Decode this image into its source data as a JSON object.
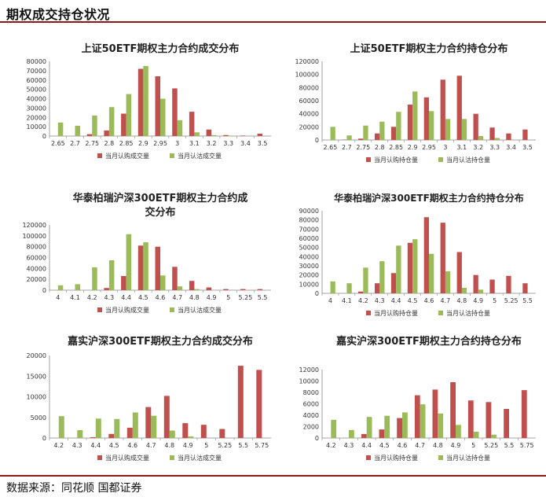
{
  "page": {
    "title": "期权成交持仓状况",
    "source": "数据来源：同花顺 国都证券"
  },
  "colors": {
    "call": "#c0504d",
    "put": "#9bbb59",
    "rule": "#8b1a1a"
  },
  "chart_data": [
    {
      "type": "bar",
      "title": [
        "上证50ETF期权主力合约成交分布"
      ],
      "categories": [
        "2.65",
        "2.7",
        "2.75",
        "2.8",
        "2.85",
        "2.9",
        "2.95",
        "3",
        "3.1",
        "3.2",
        "3.3",
        "3.4",
        "3.5"
      ],
      "yticks": [
        0,
        10000,
        20000,
        30000,
        40000,
        50000,
        60000,
        70000,
        80000
      ],
      "ylim": [
        0,
        80000
      ],
      "series": [
        {
          "name": "当月认购成交量",
          "color": "#c0504d",
          "values": [
            0,
            0,
            2000,
            6000,
            24000,
            72000,
            64000,
            51000,
            26000,
            7000,
            1000,
            500,
            2500
          ]
        },
        {
          "name": "当月认沽成交量",
          "color": "#9bbb59",
          "values": [
            14500,
            11000,
            22000,
            31000,
            45000,
            75000,
            40000,
            17000,
            4000,
            1000,
            500,
            0,
            0
          ]
        }
      ]
    },
    {
      "type": "bar",
      "title": [
        "上证50ETF期权主力合约持仓分布"
      ],
      "categories": [
        "2.65",
        "2.7",
        "2.75",
        "2.8",
        "2.85",
        "2.9",
        "2.95",
        "3",
        "3.1",
        "3.2",
        "3.3",
        "3.4",
        "3.5"
      ],
      "yticks": [
        0,
        20000,
        40000,
        60000,
        80000,
        100000,
        120000
      ],
      "ylim": [
        0,
        120000
      ],
      "series": [
        {
          "name": "当月认购持仓量",
          "color": "#c0504d",
          "values": [
            0,
            500,
            2000,
            10000,
            20000,
            54000,
            65000,
            92000,
            98000,
            40000,
            19000,
            10000,
            16000
          ]
        },
        {
          "name": "当月认沽持仓量",
          "color": "#9bbb59",
          "values": [
            20000,
            7000,
            22000,
            28000,
            43000,
            74000,
            44000,
            32000,
            32000,
            6000,
            3000,
            0,
            0
          ]
        }
      ]
    },
    {
      "type": "bar",
      "title": [
        "华泰柏瑞沪深300ETF期权主力合约成",
        "交分布"
      ],
      "categories": [
        "4",
        "4.1",
        "4.2",
        "4.3",
        "4.4",
        "4.5",
        "4.6",
        "4.7",
        "4.8",
        "4.9",
        "5",
        "5.25",
        "5.5"
      ],
      "yticks": [
        0,
        20000,
        40000,
        60000,
        80000,
        100000,
        120000
      ],
      "ylim": [
        0,
        120000
      ],
      "series": [
        {
          "name": "当月认购成交量",
          "color": "#c0504d",
          "values": [
            0,
            0,
            0,
            4000,
            26000,
            82000,
            80000,
            43000,
            17000,
            5000,
            2000,
            2000,
            2000
          ]
        },
        {
          "name": "当月认沽成交量",
          "color": "#9bbb59",
          "values": [
            9000,
            11000,
            42000,
            55000,
            103000,
            88000,
            27000,
            7000,
            2000,
            0,
            0,
            0,
            0
          ]
        }
      ]
    },
    {
      "type": "bar",
      "title": [
        "华泰柏瑞沪深300ETF期权主力合约持仓分布"
      ],
      "categories": [
        "4",
        "4.1",
        "4.2",
        "4.3",
        "4.4",
        "4.5",
        "4.6",
        "4.7",
        "4.8",
        "4.9",
        "5",
        "5.25",
        "5.5"
      ],
      "yticks": [
        0,
        10000,
        20000,
        30000,
        40000,
        50000,
        60000,
        70000,
        80000,
        90000
      ],
      "ylim": [
        0,
        90000
      ],
      "series": [
        {
          "name": "当月认购持仓量",
          "color": "#c0504d",
          "values": [
            0,
            0,
            2000,
            11000,
            22000,
            55000,
            83000,
            77000,
            45000,
            20000,
            15000,
            19000,
            11000
          ]
        },
        {
          "name": "当月认沽持仓量",
          "color": "#9bbb59",
          "values": [
            13000,
            11000,
            28000,
            35000,
            52000,
            59000,
            43000,
            24000,
            6000,
            4000,
            0,
            0,
            0
          ]
        }
      ]
    },
    {
      "type": "bar",
      "title": [
        "嘉实沪深300ETF期权主力合约成交分布"
      ],
      "categories": [
        "4.2",
        "4.3",
        "4.4",
        "4.5",
        "4.6",
        "4.7",
        "4.8",
        "4.9",
        "5",
        "5.25",
        "5.5",
        "5.75"
      ],
      "yticks": [
        0,
        5000,
        10000,
        15000,
        20000
      ],
      "ylim": [
        0,
        20000
      ],
      "series": [
        {
          "name": "当月认购成交量",
          "color": "#c0504d",
          "values": [
            0,
            0,
            200,
            1000,
            2500,
            7500,
            10200,
            3600,
            3200,
            2200,
            17500,
            16500
          ]
        },
        {
          "name": "当月认沽成交量",
          "color": "#9bbb59",
          "values": [
            5300,
            1900,
            4700,
            4600,
            6200,
            5400,
            1800,
            400,
            0,
            0,
            0,
            0
          ]
        }
      ]
    },
    {
      "type": "bar",
      "title": [
        "嘉实沪深300ETF期权主力合约持仓分布"
      ],
      "categories": [
        "4.2",
        "4.3",
        "4.4",
        "4.5",
        "4.6",
        "4.7",
        "4.8",
        "4.9",
        "5",
        "5.25",
        "5.5",
        "5.75"
      ],
      "yticks": [
        0,
        2000,
        4000,
        6000,
        8000,
        10000,
        12000
      ],
      "ylim": [
        0,
        12000
      ],
      "series": [
        {
          "name": "当月认购持仓量",
          "color": "#c0504d",
          "values": [
            0,
            0,
            700,
            1500,
            3500,
            7500,
            8500,
            9800,
            6600,
            6300,
            5100,
            8400
          ]
        },
        {
          "name": "当月认沽持仓量",
          "color": "#9bbb59",
          "values": [
            3200,
            1400,
            3700,
            3900,
            4500,
            5900,
            4300,
            2300,
            1100,
            600,
            0,
            0
          ]
        }
      ]
    }
  ]
}
